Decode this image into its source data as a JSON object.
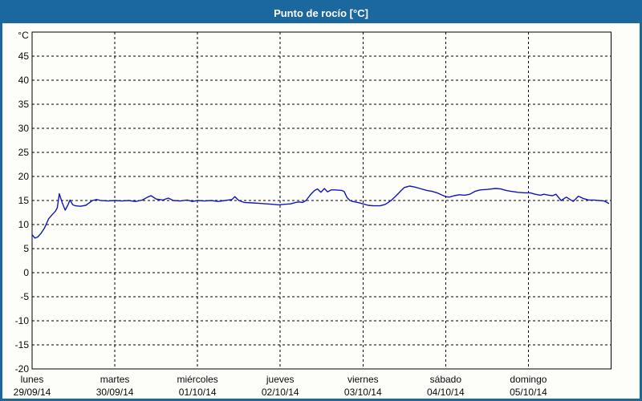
{
  "window": {
    "title": "Punto de rocío [°C]"
  },
  "colors": {
    "frame": "#1b689e",
    "title_text": "#ffffff",
    "content_bg": "#fdfdfa",
    "plot_bg": "#fdfdfa",
    "plot_border": "#000000",
    "grid": "#000000",
    "line": "#1216b6",
    "label": "#0a0a0a"
  },
  "chart_data": {
    "type": "line",
    "title": "Punto de rocío [°C]",
    "ylabel": "°C",
    "xlabel": "",
    "ylim": [
      -20,
      50
    ],
    "x_total_hours": 168,
    "grid": "dashed",
    "legend": "none",
    "y_ticks": [
      45,
      40,
      35,
      30,
      25,
      20,
      15,
      10,
      5,
      0,
      -5,
      -10,
      -15,
      -20
    ],
    "x_days": [
      {
        "hour": 0,
        "day": "lunes",
        "date": "29/09/14"
      },
      {
        "hour": 24,
        "day": "martes",
        "date": "30/09/14"
      },
      {
        "hour": 48,
        "day": "miércoles",
        "date": "01/10/14"
      },
      {
        "hour": 72,
        "day": "jueves",
        "date": "02/10/14"
      },
      {
        "hour": 96,
        "day": "viernes",
        "date": "03/10/14"
      },
      {
        "hour": 120,
        "day": "sábado",
        "date": "04/10/14"
      },
      {
        "hour": 144,
        "day": "domingo",
        "date": "05/10/14"
      }
    ],
    "series": [
      {
        "name": "Punto de rocío",
        "units": "°C",
        "color": "#1216b6",
        "points": [
          [
            0,
            7.9
          ],
          [
            0.8,
            7.2
          ],
          [
            1.6,
            7.4
          ],
          [
            2.6,
            8.2
          ],
          [
            3.6,
            9.3
          ],
          [
            4.8,
            11.2
          ],
          [
            6,
            12.2
          ],
          [
            6.8,
            12.8
          ],
          [
            7.3,
            13.5
          ],
          [
            7.9,
            16.4
          ],
          [
            8.7,
            14.6
          ],
          [
            9.6,
            13.0
          ],
          [
            10.4,
            14.1
          ],
          [
            11,
            15.1
          ],
          [
            11.8,
            14.1
          ],
          [
            12.6,
            13.9
          ],
          [
            14,
            13.8
          ],
          [
            15.6,
            14.0
          ],
          [
            17.5,
            15.0
          ],
          [
            18.7,
            15.2
          ],
          [
            20,
            15.0
          ],
          [
            22,
            14.9
          ],
          [
            24,
            15.0
          ],
          [
            26,
            14.9
          ],
          [
            28,
            15.0
          ],
          [
            30,
            14.8
          ],
          [
            32,
            15.1
          ],
          [
            33.5,
            15.7
          ],
          [
            34.5,
            16.0
          ],
          [
            36,
            15.3
          ],
          [
            38,
            15.1
          ],
          [
            39.5,
            15.5
          ],
          [
            41,
            15.0
          ],
          [
            43,
            14.9
          ],
          [
            45,
            15.1
          ],
          [
            46.5,
            14.8
          ],
          [
            48,
            15.0
          ],
          [
            50,
            14.9
          ],
          [
            52,
            15.0
          ],
          [
            54,
            14.8
          ],
          [
            56,
            15.0
          ],
          [
            58,
            15.2
          ],
          [
            58.8,
            15.8
          ],
          [
            60,
            15.0
          ],
          [
            61.5,
            14.6
          ],
          [
            64,
            14.5
          ],
          [
            66,
            14.4
          ],
          [
            68,
            14.3
          ],
          [
            70,
            14.2
          ],
          [
            71.5,
            14.1
          ],
          [
            73,
            14.2
          ],
          [
            75,
            14.3
          ],
          [
            76.5,
            14.6
          ],
          [
            77.5,
            14.7
          ],
          [
            78.5,
            14.6
          ],
          [
            79.5,
            15.0
          ],
          [
            80,
            15.5
          ],
          [
            81,
            16.4
          ],
          [
            82,
            17.1
          ],
          [
            82.8,
            17.4
          ],
          [
            83.8,
            16.7
          ],
          [
            84.8,
            17.5
          ],
          [
            85.7,
            16.8
          ],
          [
            86.8,
            17.2
          ],
          [
            88,
            17.2
          ],
          [
            89.8,
            17.1
          ],
          [
            90.5,
            16.9
          ],
          [
            91.4,
            15.6
          ],
          [
            92.2,
            15.0
          ],
          [
            93,
            14.8
          ],
          [
            94.5,
            14.6
          ],
          [
            96,
            14.3
          ],
          [
            97.5,
            14.0
          ],
          [
            99,
            13.9
          ],
          [
            101,
            13.9
          ],
          [
            102.5,
            14.2
          ],
          [
            104,
            14.9
          ],
          [
            105.5,
            15.9
          ],
          [
            107,
            17.0
          ],
          [
            108,
            17.7
          ],
          [
            109.5,
            18.0
          ],
          [
            111,
            17.8
          ],
          [
            112.5,
            17.5
          ],
          [
            114.5,
            17.1
          ],
          [
            116,
            16.9
          ],
          [
            117.5,
            16.6
          ],
          [
            119,
            16.1
          ],
          [
            120,
            15.8
          ],
          [
            121,
            15.7
          ],
          [
            122.5,
            16.0
          ],
          [
            124,
            16.2
          ],
          [
            125.5,
            16.1
          ],
          [
            127,
            16.3
          ],
          [
            128.5,
            16.9
          ],
          [
            130,
            17.2
          ],
          [
            132,
            17.3
          ],
          [
            134.5,
            17.5
          ],
          [
            136,
            17.4
          ],
          [
            137.5,
            17.1
          ],
          [
            139,
            16.9
          ],
          [
            141,
            16.7
          ],
          [
            143,
            16.6
          ],
          [
            144.5,
            16.6
          ],
          [
            146,
            16.3
          ],
          [
            147.5,
            16.1
          ],
          [
            148.5,
            16.3
          ],
          [
            150,
            16.1
          ],
          [
            151,
            16.0
          ],
          [
            152,
            16.3
          ],
          [
            153.5,
            15.0
          ],
          [
            155,
            15.7
          ],
          [
            157,
            14.8
          ],
          [
            158.5,
            15.9
          ],
          [
            160,
            15.4
          ],
          [
            161.5,
            15.1
          ],
          [
            163,
            15.1
          ],
          [
            164.5,
            15.0
          ],
          [
            166,
            14.9
          ],
          [
            166.8,
            14.6
          ],
          [
            167.3,
            14.4
          ]
        ]
      }
    ]
  }
}
